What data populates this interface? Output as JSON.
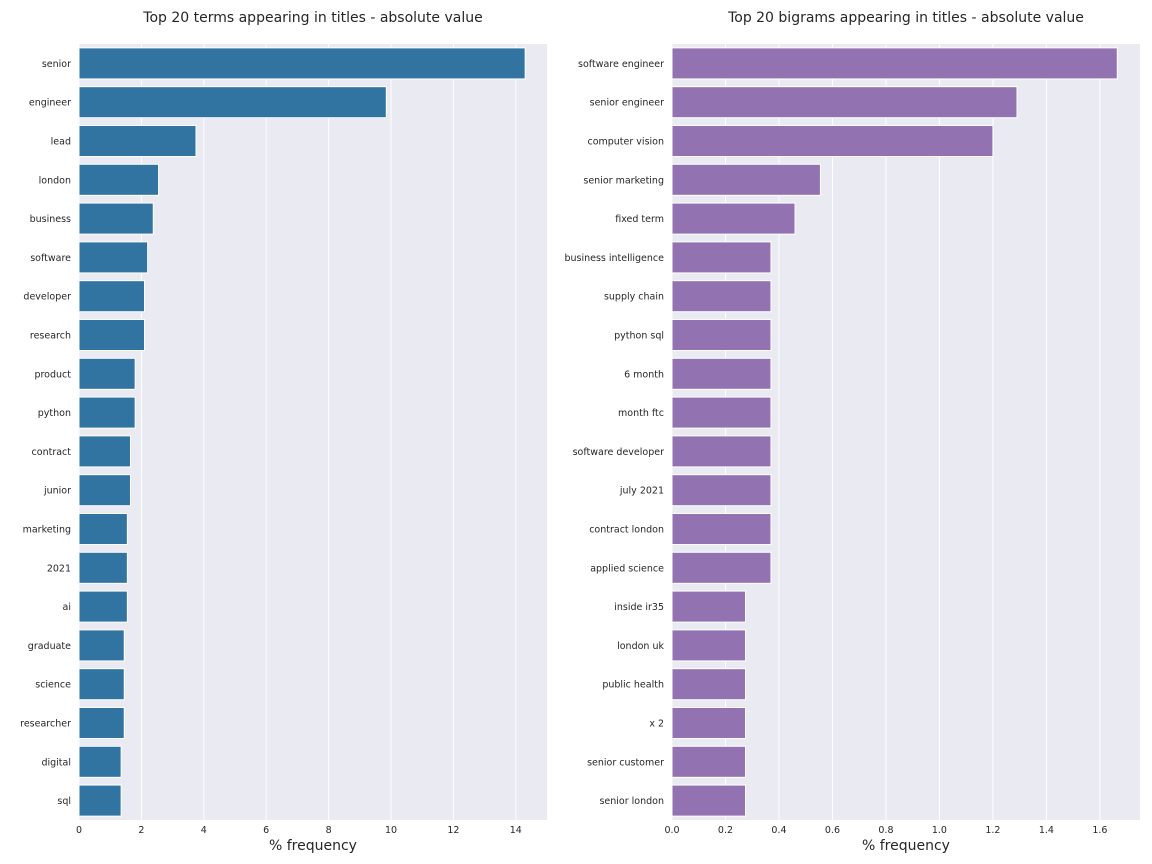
{
  "chart_data": [
    {
      "type": "bar",
      "orientation": "horizontal",
      "title": "Top 20 terms appearing in titles - absolute value",
      "xlabel": "% frequency",
      "ylabel": "",
      "xlim": [
        0,
        15
      ],
      "xticks": [
        0,
        2,
        4,
        6,
        8,
        10,
        12,
        14
      ],
      "xtick_labels": [
        "0",
        "2",
        "4",
        "6",
        "8",
        "10",
        "12",
        "14"
      ],
      "color": "#3274a1",
      "grid": true,
      "categories": [
        "senior",
        "engineer",
        "lead",
        "london",
        "business",
        "software",
        "developer",
        "research",
        "product",
        "python",
        "contract",
        "junior",
        "marketing",
        "2021",
        "ai",
        "graduate",
        "science",
        "researcher",
        "digital",
        "sql"
      ],
      "values": [
        14.3,
        9.85,
        3.75,
        2.55,
        2.38,
        2.2,
        2.1,
        2.1,
        1.8,
        1.8,
        1.65,
        1.65,
        1.55,
        1.55,
        1.55,
        1.45,
        1.45,
        1.45,
        1.35,
        1.35
      ]
    },
    {
      "type": "bar",
      "orientation": "horizontal",
      "title": "Top 20 bigrams appearing in titles - absolute value",
      "xlabel": "% frequency",
      "ylabel": "",
      "xlim": [
        0,
        1.75
      ],
      "xticks": [
        0,
        0.2,
        0.4,
        0.6,
        0.8,
        1.0,
        1.2,
        1.4,
        1.6
      ],
      "xtick_labels": [
        "0.0",
        "0.2",
        "0.4",
        "0.6",
        "0.8",
        "1.0",
        "1.2",
        "1.4",
        "1.6"
      ],
      "color": "#9372b2",
      "grid": true,
      "categories": [
        "software engineer",
        "senior engineer",
        "computer vision",
        "senior marketing",
        "fixed term",
        "business intelligence",
        "supply chain",
        "python sql",
        "6 month",
        "month ftc",
        "software developer",
        "july 2021",
        "contract london",
        "applied science",
        "inside ir35",
        "london uk",
        "public health",
        "x 2",
        "senior customer",
        "senior london"
      ],
      "values": [
        1.665,
        1.29,
        1.2,
        0.555,
        0.46,
        0.37,
        0.37,
        0.37,
        0.37,
        0.37,
        0.37,
        0.37,
        0.37,
        0.37,
        0.275,
        0.275,
        0.275,
        0.275,
        0.275,
        0.275
      ]
    }
  ]
}
